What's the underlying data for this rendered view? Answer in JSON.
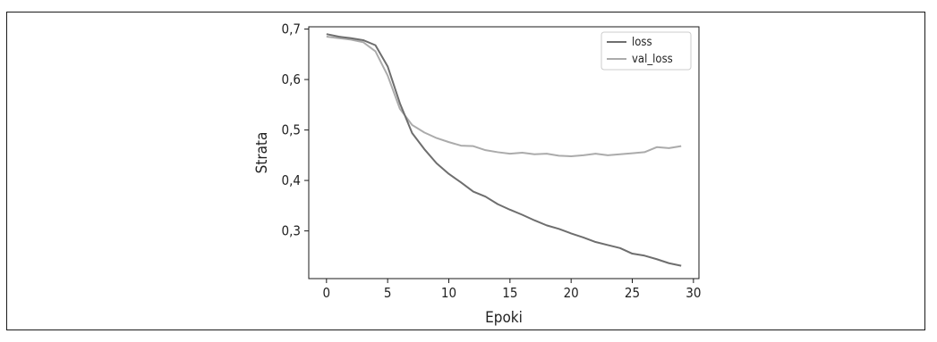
{
  "chart_data": {
    "type": "line",
    "xlabel": "Epoki",
    "ylabel": "Strata",
    "xlim": [
      -1.45,
      30.45
    ],
    "ylim": [
      0.2055,
      0.7045
    ],
    "grid": false,
    "legend_position": "top-right",
    "x_ticks": [
      0,
      5,
      10,
      15,
      20,
      25,
      30
    ],
    "x_tick_labels": [
      "0",
      "5",
      "10",
      "15",
      "20",
      "25",
      "30"
    ],
    "y_ticks": [
      0.3,
      0.4,
      0.5,
      0.6,
      0.7
    ],
    "y_tick_labels": [
      "0,3",
      "0,4",
      "0,5",
      "0,6",
      "0,7"
    ],
    "x": [
      0,
      1,
      2,
      3,
      4,
      5,
      6,
      7,
      8,
      9,
      10,
      11,
      12,
      13,
      14,
      15,
      16,
      17,
      18,
      19,
      20,
      21,
      22,
      23,
      24,
      25,
      26,
      27,
      28,
      29
    ],
    "series": [
      {
        "name": "loss",
        "color": "#6e6e6e",
        "values": [
          0.69,
          0.685,
          0.682,
          0.678,
          0.668,
          0.626,
          0.553,
          0.494,
          0.462,
          0.434,
          0.413,
          0.396,
          0.378,
          0.368,
          0.353,
          0.342,
          0.332,
          0.321,
          0.311,
          0.304,
          0.295,
          0.287,
          0.278,
          0.272,
          0.266,
          0.255,
          0.251,
          0.244,
          0.236,
          0.231
        ]
      },
      {
        "name": "val_loss",
        "color": "#ababab",
        "values": [
          0.685,
          0.682,
          0.679,
          0.674,
          0.656,
          0.608,
          0.542,
          0.51,
          0.495,
          0.484,
          0.476,
          0.469,
          0.468,
          0.46,
          0.456,
          0.453,
          0.455,
          0.452,
          0.453,
          0.449,
          0.448,
          0.45,
          0.453,
          0.45,
          0.452,
          0.454,
          0.456,
          0.466,
          0.464,
          0.468
        ]
      }
    ]
  }
}
